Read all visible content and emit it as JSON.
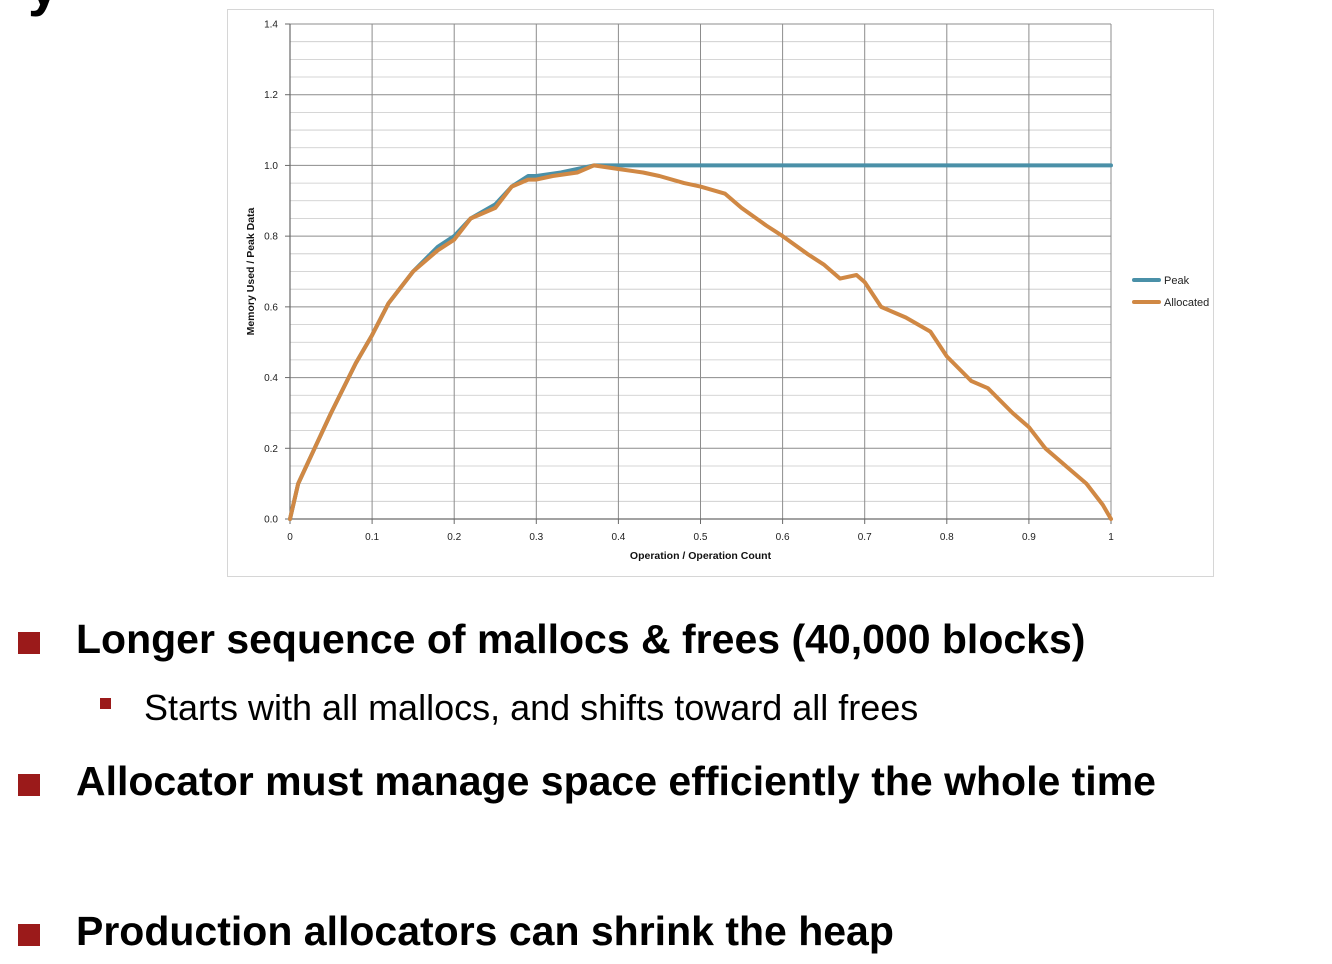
{
  "chart_data": {
    "type": "line",
    "title": "",
    "xlabel": "Operation / Operation Count",
    "ylabel": "Memory Used / Peak Data",
    "xlim": [
      0,
      1
    ],
    "ylim": [
      0,
      1.4
    ],
    "x_ticks": [
      "0",
      "0.1",
      "0.2",
      "0.3",
      "0.4",
      "0.5",
      "0.6",
      "0.7",
      "0.8",
      "0.9",
      "1"
    ],
    "y_ticks": [
      "0.0",
      "0.2",
      "0.4",
      "0.6",
      "0.8",
      "1.0",
      "1.2",
      "1.4"
    ],
    "grid": true,
    "legend_position": "right",
    "series": [
      {
        "name": "Peak",
        "color": "#4a90a8",
        "x": [
          0,
          0.01,
          0.03,
          0.05,
          0.08,
          0.1,
          0.12,
          0.15,
          0.18,
          0.2,
          0.22,
          0.25,
          0.27,
          0.29,
          0.3,
          0.33,
          0.35,
          0.37,
          0.4,
          0.5,
          0.6,
          0.7,
          0.8,
          0.9,
          1.0
        ],
        "y": [
          0,
          0.1,
          0.2,
          0.3,
          0.44,
          0.52,
          0.61,
          0.7,
          0.77,
          0.8,
          0.85,
          0.89,
          0.94,
          0.97,
          0.97,
          0.98,
          0.99,
          1.0,
          1.0,
          1.0,
          1.0,
          1.0,
          1.0,
          1.0,
          1.0
        ]
      },
      {
        "name": "Allocated",
        "color": "#d08844",
        "x": [
          0,
          0.01,
          0.03,
          0.05,
          0.08,
          0.1,
          0.12,
          0.15,
          0.18,
          0.2,
          0.22,
          0.25,
          0.27,
          0.29,
          0.3,
          0.32,
          0.35,
          0.37,
          0.4,
          0.43,
          0.45,
          0.48,
          0.5,
          0.53,
          0.55,
          0.58,
          0.6,
          0.63,
          0.65,
          0.67,
          0.69,
          0.7,
          0.72,
          0.75,
          0.78,
          0.8,
          0.83,
          0.85,
          0.88,
          0.9,
          0.92,
          0.95,
          0.97,
          0.99,
          1.0
        ],
        "y": [
          0,
          0.1,
          0.2,
          0.3,
          0.44,
          0.52,
          0.61,
          0.7,
          0.76,
          0.79,
          0.85,
          0.88,
          0.94,
          0.96,
          0.96,
          0.97,
          0.98,
          1.0,
          0.99,
          0.98,
          0.97,
          0.95,
          0.94,
          0.92,
          0.88,
          0.83,
          0.8,
          0.75,
          0.72,
          0.68,
          0.69,
          0.67,
          0.6,
          0.57,
          0.53,
          0.46,
          0.39,
          0.37,
          0.3,
          0.26,
          0.2,
          0.14,
          0.1,
          0.04,
          0.0
        ]
      }
    ]
  },
  "bullets": [
    {
      "text": "Longer sequence of mallocs & frees (40,000 blocks)",
      "sub": "Starts with all mallocs, and shifts toward all frees"
    },
    {
      "text": "Allocator must manage space efficiently the whole time"
    },
    {
      "text": "Production allocators can shrink the heap"
    }
  ],
  "colors": {
    "bullet": "#9b1a1a",
    "grid": "#9a9a9a"
  }
}
